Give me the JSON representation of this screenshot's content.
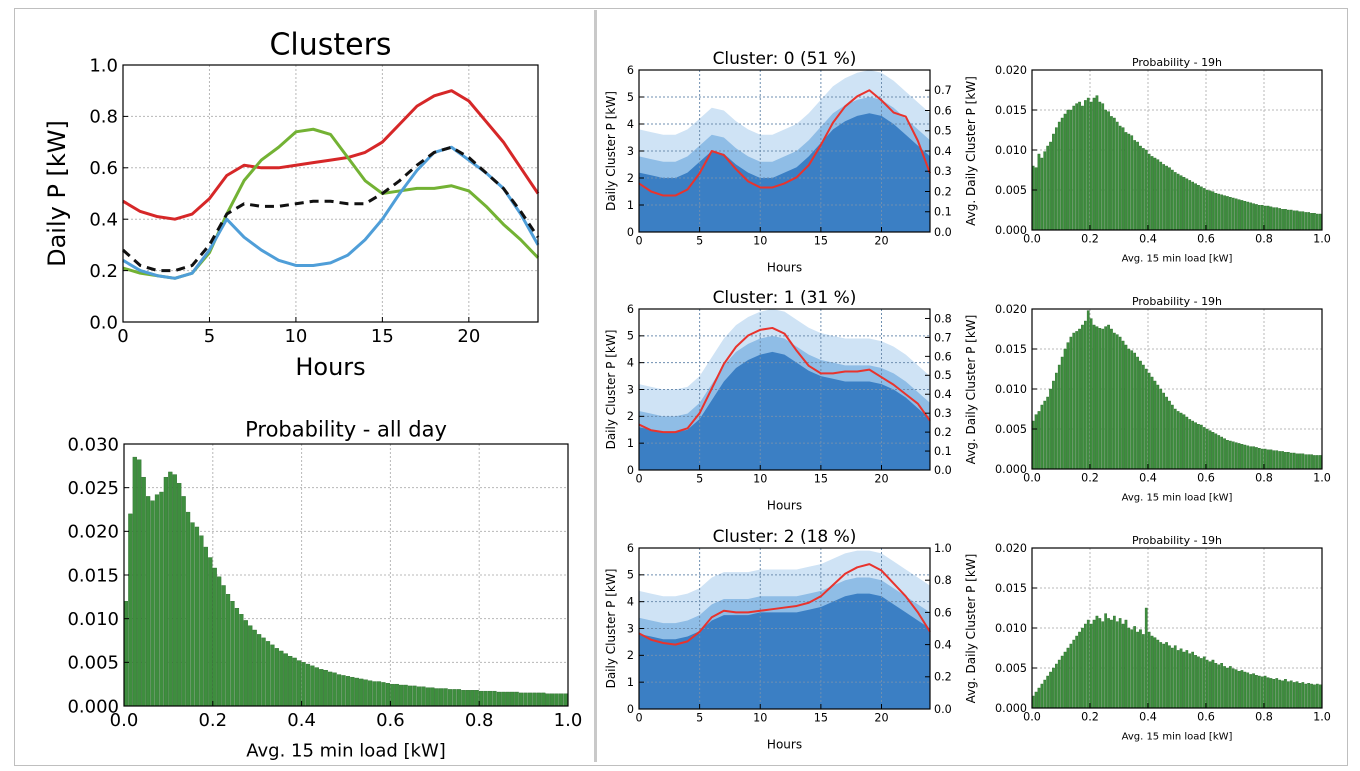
{
  "chart_data": [
    {
      "type": "line",
      "title": "Clusters",
      "xlabel": "Hours",
      "ylabel": "Daily P [kW]",
      "xlim": [
        0,
        24
      ],
      "ylim": [
        0,
        1.0
      ],
      "xticks": [
        "0",
        "5",
        "10",
        "15",
        "20"
      ],
      "yticks": [
        "0.0",
        "0.2",
        "0.4",
        "0.6",
        "0.8",
        "1.0"
      ],
      "grid": true,
      "x": [
        0,
        1,
        2,
        3,
        4,
        5,
        6,
        7,
        8,
        9,
        10,
        11,
        12,
        13,
        14,
        15,
        16,
        17,
        18,
        19,
        20,
        21,
        22,
        23,
        24
      ],
      "series": [
        {
          "color": "#d62728",
          "style": "solid",
          "values": [
            0.47,
            0.43,
            0.41,
            0.4,
            0.42,
            0.48,
            0.57,
            0.61,
            0.6,
            0.6,
            0.61,
            0.62,
            0.63,
            0.64,
            0.66,
            0.7,
            0.77,
            0.84,
            0.88,
            0.9,
            0.86,
            0.78,
            0.7,
            0.6,
            0.5
          ]
        },
        {
          "color": "#73b234",
          "style": "solid",
          "values": [
            0.21,
            0.19,
            0.18,
            0.17,
            0.19,
            0.27,
            0.42,
            0.55,
            0.63,
            0.68,
            0.74,
            0.75,
            0.73,
            0.64,
            0.55,
            0.5,
            0.51,
            0.52,
            0.52,
            0.53,
            0.51,
            0.45,
            0.38,
            0.32,
            0.25
          ]
        },
        {
          "color": "#4f9ed8",
          "style": "solid",
          "values": [
            0.24,
            0.2,
            0.18,
            0.17,
            0.19,
            0.28,
            0.4,
            0.33,
            0.28,
            0.24,
            0.22,
            0.22,
            0.23,
            0.26,
            0.32,
            0.4,
            0.5,
            0.59,
            0.66,
            0.68,
            0.63,
            0.58,
            0.52,
            0.42,
            0.3
          ]
        },
        {
          "color": "#111111",
          "style": "dashed",
          "values": [
            0.28,
            0.22,
            0.2,
            0.2,
            0.22,
            0.3,
            0.42,
            0.46,
            0.45,
            0.45,
            0.46,
            0.47,
            0.47,
            0.46,
            0.46,
            0.5,
            0.55,
            0.61,
            0.66,
            0.68,
            0.64,
            0.58,
            0.52,
            0.43,
            0.33
          ]
        }
      ]
    },
    {
      "type": "bar",
      "title": "Probability - all day",
      "xlabel": "Avg. 15 min load [kW]",
      "ylabel": "",
      "xlim": [
        0,
        1.0
      ],
      "ylim": [
        0,
        0.03
      ],
      "xticks": [
        "0.0",
        "0.2",
        "0.4",
        "0.6",
        "0.8",
        "1.0"
      ],
      "yticks": [
        "0.000",
        "0.005",
        "0.010",
        "0.015",
        "0.020",
        "0.025",
        "0.030"
      ],
      "grid": true,
      "bar_color": "#3e8e3e",
      "bin_width": 0.01,
      "values": [
        0.012,
        0.022,
        0.0285,
        0.0282,
        0.0262,
        0.024,
        0.0235,
        0.0242,
        0.0245,
        0.0262,
        0.0268,
        0.0265,
        0.0255,
        0.024,
        0.0222,
        0.021,
        0.0205,
        0.0195,
        0.0182,
        0.017,
        0.0158,
        0.0148,
        0.0138,
        0.0128,
        0.012,
        0.0112,
        0.0105,
        0.0098,
        0.0092,
        0.0087,
        0.0082,
        0.0078,
        0.0074,
        0.007,
        0.0066,
        0.0063,
        0.006,
        0.0057,
        0.0055,
        0.0052,
        0.005,
        0.0048,
        0.0046,
        0.0044,
        0.0042,
        0.0041,
        0.0039,
        0.0038,
        0.0036,
        0.0035,
        0.0034,
        0.0033,
        0.0032,
        0.0031,
        0.003,
        0.0029,
        0.0028,
        0.0028,
        0.0027,
        0.0026,
        0.0025,
        0.0025,
        0.0024,
        0.0024,
        0.0023,
        0.0023,
        0.0022,
        0.0022,
        0.0021,
        0.0021,
        0.002,
        0.002,
        0.002,
        0.0019,
        0.0019,
        0.0019,
        0.0018,
        0.0018,
        0.0018,
        0.0018,
        0.0017,
        0.0017,
        0.0017,
        0.0017,
        0.0016,
        0.0016,
        0.0016,
        0.0016,
        0.0016,
        0.0015,
        0.0015,
        0.0015,
        0.0015,
        0.0015,
        0.0015,
        0.0014,
        0.0014,
        0.0014,
        0.0014,
        0.0014
      ]
    },
    {
      "type": "area",
      "title": "Cluster: 0 (51 %)",
      "xlabel": "Hours",
      "ylabel": "Daily Cluster P [kW]",
      "ylabel_right": "Avg. Daily Cluster P [kW]",
      "xlim": [
        0,
        24
      ],
      "ylim": [
        0,
        6
      ],
      "ylim_right": [
        0,
        0.8
      ],
      "xticks": [
        "0",
        "5",
        "10",
        "15",
        "20"
      ],
      "yticks": [
        "0",
        "1",
        "2",
        "3",
        "4",
        "5",
        "6"
      ],
      "yticks_right": [
        "0.0",
        "0.1",
        "0.2",
        "0.3",
        "0.4",
        "0.5",
        "0.6",
        "0.7"
      ],
      "grid": true,
      "x": [
        0,
        1,
        2,
        3,
        4,
        5,
        6,
        7,
        8,
        9,
        10,
        11,
        12,
        13,
        14,
        15,
        16,
        17,
        18,
        19,
        20,
        21,
        22,
        23,
        24
      ],
      "area_values": [
        2.2,
        2.1,
        2.0,
        2.0,
        2.2,
        2.6,
        3.0,
        2.9,
        2.5,
        2.2,
        2.0,
        2.0,
        2.2,
        2.4,
        2.8,
        3.3,
        3.8,
        4.1,
        4.3,
        4.4,
        4.3,
        4.0,
        3.6,
        3.2,
        2.8
      ],
      "avg_values": [
        0.24,
        0.2,
        0.18,
        0.18,
        0.21,
        0.29,
        0.4,
        0.38,
        0.31,
        0.25,
        0.22,
        0.22,
        0.24,
        0.27,
        0.33,
        0.43,
        0.54,
        0.62,
        0.67,
        0.7,
        0.65,
        0.59,
        0.57,
        0.45,
        0.29
      ]
    },
    {
      "type": "area",
      "title": "Cluster: 1 (31 %)",
      "xlabel": "Hours",
      "ylabel": "Daily Cluster P [kW]",
      "ylabel_right": "Avg. Daily Cluster P [kW]",
      "xlim": [
        0,
        24
      ],
      "ylim": [
        0,
        6
      ],
      "ylim_right": [
        0,
        0.85
      ],
      "xticks": [
        "0",
        "5",
        "10",
        "15",
        "20"
      ],
      "yticks": [
        "0",
        "1",
        "2",
        "3",
        "4",
        "5",
        "6"
      ],
      "yticks_right": [
        "0.0",
        "0.1",
        "0.2",
        "0.3",
        "0.4",
        "0.5",
        "0.6",
        "0.7",
        "0.8"
      ],
      "grid": true,
      "x": [
        0,
        1,
        2,
        3,
        4,
        5,
        6,
        7,
        8,
        9,
        10,
        11,
        12,
        13,
        14,
        15,
        16,
        17,
        18,
        19,
        20,
        21,
        22,
        23,
        24
      ],
      "area_values": [
        1.6,
        1.5,
        1.4,
        1.4,
        1.5,
        1.9,
        2.6,
        3.3,
        3.8,
        4.1,
        4.3,
        4.4,
        4.3,
        4.0,
        3.7,
        3.5,
        3.4,
        3.3,
        3.3,
        3.3,
        3.2,
        3.0,
        2.7,
        2.3,
        1.9
      ],
      "avg_values": [
        0.24,
        0.21,
        0.2,
        0.2,
        0.22,
        0.3,
        0.43,
        0.56,
        0.65,
        0.71,
        0.74,
        0.75,
        0.72,
        0.63,
        0.55,
        0.51,
        0.51,
        0.52,
        0.52,
        0.53,
        0.49,
        0.45,
        0.4,
        0.35,
        0.26
      ]
    },
    {
      "type": "area",
      "title": "Cluster: 2 (18 %)",
      "xlabel": "Hours",
      "ylabel": "Daily Cluster P [kW]",
      "ylabel_right": "Avg. Daily Cluster P [kW]",
      "xlim": [
        0,
        24
      ],
      "ylim": [
        0,
        6
      ],
      "ylim_right": [
        0,
        1.0
      ],
      "xticks": [
        "0",
        "5",
        "10",
        "15",
        "20"
      ],
      "yticks": [
        "0",
        "1",
        "2",
        "3",
        "4",
        "5",
        "6"
      ],
      "yticks_right": [
        "0.0",
        "0.2",
        "0.4",
        "0.6",
        "0.8",
        "1.0"
      ],
      "grid": true,
      "x": [
        0,
        1,
        2,
        3,
        4,
        5,
        6,
        7,
        8,
        9,
        10,
        11,
        12,
        13,
        14,
        15,
        16,
        17,
        18,
        19,
        20,
        21,
        22,
        23,
        24
      ],
      "area_values": [
        2.8,
        2.7,
        2.6,
        2.6,
        2.7,
        2.9,
        3.3,
        3.5,
        3.5,
        3.5,
        3.6,
        3.6,
        3.6,
        3.6,
        3.7,
        3.8,
        4.0,
        4.2,
        4.3,
        4.3,
        4.2,
        3.9,
        3.6,
        3.3,
        3.0
      ],
      "avg_values": [
        0.47,
        0.43,
        0.41,
        0.4,
        0.42,
        0.48,
        0.57,
        0.61,
        0.6,
        0.6,
        0.61,
        0.62,
        0.63,
        0.64,
        0.66,
        0.7,
        0.77,
        0.84,
        0.88,
        0.9,
        0.86,
        0.78,
        0.7,
        0.6,
        0.48
      ]
    },
    {
      "type": "bar",
      "title": "Probability - 19h",
      "xlabel": "Avg. 15 min load [kW]",
      "ylabel": "",
      "xlim": [
        0,
        1.0
      ],
      "ylim": [
        0,
        0.02
      ],
      "xticks": [
        "0.0",
        "0.2",
        "0.4",
        "0.6",
        "0.8",
        "1.0"
      ],
      "yticks": [
        "0.000",
        "0.005",
        "0.010",
        "0.015",
        "0.020"
      ],
      "grid": true,
      "bar_color": "#3e8e3e",
      "bin_width": 0.01,
      "values": [
        0.008,
        0.0078,
        0.0095,
        0.009,
        0.0098,
        0.0105,
        0.011,
        0.012,
        0.0128,
        0.0135,
        0.014,
        0.0145,
        0.015,
        0.015,
        0.0155,
        0.0158,
        0.016,
        0.0155,
        0.0162,
        0.0165,
        0.016,
        0.0165,
        0.0168,
        0.016,
        0.0158,
        0.015,
        0.0148,
        0.0142,
        0.014,
        0.0135,
        0.013,
        0.0128,
        0.0122,
        0.012,
        0.0118,
        0.0112,
        0.011,
        0.0105,
        0.0102,
        0.01,
        0.0095,
        0.0092,
        0.009,
        0.0088,
        0.0085,
        0.0082,
        0.008,
        0.0078,
        0.0075,
        0.0072,
        0.007,
        0.0068,
        0.0066,
        0.0064,
        0.0062,
        0.006,
        0.0058,
        0.0056,
        0.0054,
        0.0052,
        0.005,
        0.0049,
        0.0048,
        0.0046,
        0.0045,
        0.0044,
        0.0043,
        0.0042,
        0.0041,
        0.004,
        0.0039,
        0.0038,
        0.0037,
        0.0036,
        0.0035,
        0.0034,
        0.0033,
        0.0032,
        0.0031,
        0.0031,
        0.003,
        0.003,
        0.0029,
        0.0028,
        0.0028,
        0.0027,
        0.0026,
        0.0026,
        0.0025,
        0.0025,
        0.0024,
        0.0024,
        0.0023,
        0.0023,
        0.0022,
        0.0022,
        0.0021,
        0.0021,
        0.002,
        0.002
      ]
    },
    {
      "type": "bar",
      "title": "Probability - 19h",
      "xlabel": "Avg. 15 min load [kW]",
      "ylabel": "",
      "xlim": [
        0,
        1.0
      ],
      "ylim": [
        0,
        0.02
      ],
      "xticks": [
        "0.0",
        "0.2",
        "0.4",
        "0.6",
        "0.8",
        "1.0"
      ],
      "yticks": [
        "0.000",
        "0.005",
        "0.010",
        "0.015",
        "0.020"
      ],
      "grid": true,
      "bar_color": "#3e8e3e",
      "bin_width": 0.01,
      "values": [
        0.006,
        0.0068,
        0.0072,
        0.008,
        0.0085,
        0.009,
        0.01,
        0.011,
        0.012,
        0.013,
        0.014,
        0.015,
        0.0158,
        0.0165,
        0.017,
        0.0172,
        0.0175,
        0.018,
        0.0185,
        0.0198,
        0.0188,
        0.018,
        0.0178,
        0.0176,
        0.0175,
        0.0178,
        0.018,
        0.0175,
        0.017,
        0.0168,
        0.0165,
        0.016,
        0.0155,
        0.015,
        0.0148,
        0.0145,
        0.014,
        0.0135,
        0.013,
        0.0125,
        0.012,
        0.0115,
        0.011,
        0.0105,
        0.01,
        0.0095,
        0.009,
        0.0085,
        0.008,
        0.0075,
        0.0072,
        0.007,
        0.0068,
        0.0065,
        0.0062,
        0.006,
        0.0058,
        0.0056,
        0.0055,
        0.0052,
        0.005,
        0.0048,
        0.0046,
        0.0044,
        0.0042,
        0.004,
        0.0038,
        0.0036,
        0.0035,
        0.0034,
        0.0033,
        0.0032,
        0.0031,
        0.003,
        0.0029,
        0.0028,
        0.0028,
        0.0027,
        0.0026,
        0.0025,
        0.0025,
        0.0024,
        0.0024,
        0.0023,
        0.0023,
        0.0022,
        0.0022,
        0.0021,
        0.0021,
        0.002,
        0.002,
        0.0019,
        0.0019,
        0.0019,
        0.0018,
        0.0018,
        0.0018,
        0.0017,
        0.0017,
        0.0017
      ]
    },
    {
      "type": "bar",
      "title": "Probability - 19h",
      "xlabel": "Avg. 15 min load [kW]",
      "ylabel": "",
      "xlim": [
        0,
        1.0
      ],
      "ylim": [
        0,
        0.02
      ],
      "xticks": [
        "0.0",
        "0.2",
        "0.4",
        "0.6",
        "0.8",
        "1.0"
      ],
      "yticks": [
        "0.000",
        "0.005",
        "0.010",
        "0.015",
        "0.020"
      ],
      "grid": true,
      "bar_color": "#3e8e3e",
      "bin_width": 0.01,
      "values": [
        0.0015,
        0.002,
        0.0025,
        0.003,
        0.0035,
        0.004,
        0.0045,
        0.005,
        0.0055,
        0.006,
        0.0065,
        0.007,
        0.0075,
        0.008,
        0.0085,
        0.009,
        0.0095,
        0.01,
        0.0105,
        0.011,
        0.0105,
        0.011,
        0.0115,
        0.0112,
        0.0108,
        0.0118,
        0.0112,
        0.011,
        0.0115,
        0.0108,
        0.0112,
        0.0105,
        0.011,
        0.01,
        0.0098,
        0.0102,
        0.0095,
        0.0098,
        0.0092,
        0.0125,
        0.0095,
        0.009,
        0.0088,
        0.0085,
        0.0082,
        0.008,
        0.0082,
        0.0078,
        0.0075,
        0.0078,
        0.0072,
        0.0074,
        0.007,
        0.0072,
        0.0068,
        0.007,
        0.0066,
        0.0064,
        0.0062,
        0.0064,
        0.006,
        0.0058,
        0.006,
        0.0056,
        0.0054,
        0.0056,
        0.0052,
        0.005,
        0.0052,
        0.0049,
        0.0048,
        0.0046,
        0.0047,
        0.0045,
        0.0044,
        0.0042,
        0.0043,
        0.0041,
        0.004,
        0.0039,
        0.004,
        0.0038,
        0.0037,
        0.0036,
        0.0037,
        0.0035,
        0.0034,
        0.0036,
        0.0033,
        0.0034,
        0.0032,
        0.0033,
        0.0031,
        0.0032,
        0.003,
        0.0031,
        0.003,
        0.0029,
        0.003,
        0.0029
      ]
    }
  ]
}
